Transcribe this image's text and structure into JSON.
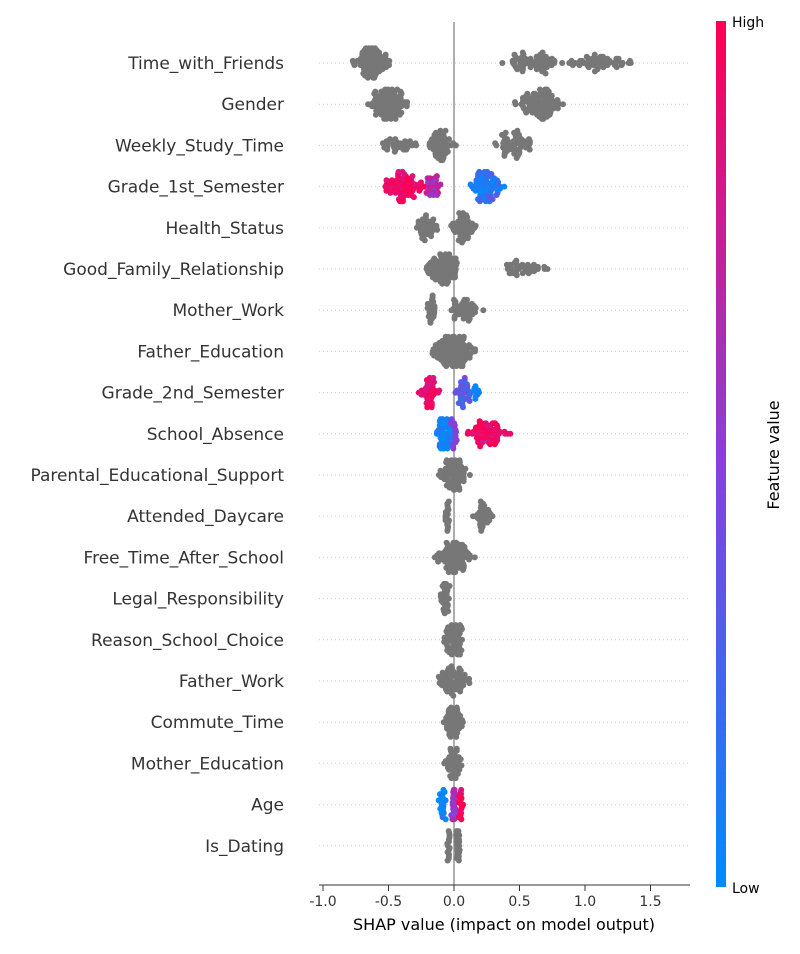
{
  "chart_data": {
    "type": "scatter",
    "subtype": "shap-beeswarm",
    "xlabel": "SHAP value (impact on model output)",
    "xlim": [
      -1.05,
      1.8
    ],
    "xticks": [
      "-1.0",
      "-0.5",
      "0.0",
      "0.5",
      "1.0",
      "1.5"
    ],
    "xtick_values": [
      -1.0,
      -0.5,
      0.0,
      0.5,
      1.0,
      1.5
    ],
    "grid": "dotted row lines",
    "colorbar": {
      "label": "Feature value",
      "high": "High",
      "low": "Low",
      "placement": "right"
    },
    "colors": {
      "low": "#008bfb",
      "high": "#ff0052",
      "no_value": "#777777",
      "axis": "#333333",
      "zero_line": "#999999"
    },
    "features": [
      {
        "name": "Time_with_Friends",
        "colored": false,
        "clusters": [
          {
            "center": -0.63,
            "spread": 0.1,
            "n": 110
          },
          {
            "center": 0.6,
            "spread": 0.17,
            "n": 70
          },
          {
            "center": 1.1,
            "spread": 0.22,
            "n": 60
          }
        ]
      },
      {
        "name": "Gender",
        "colored": false,
        "clusters": [
          {
            "center": -0.5,
            "spread": 0.11,
            "n": 120
          },
          {
            "center": 0.65,
            "spread": 0.14,
            "n": 110
          }
        ]
      },
      {
        "name": "Weekly_Study_Time",
        "colored": false,
        "clusters": [
          {
            "center": -0.1,
            "spread": 0.08,
            "n": 70
          },
          {
            "center": -0.45,
            "spread": 0.12,
            "n": 35
          },
          {
            "center": 0.45,
            "spread": 0.13,
            "n": 60
          }
        ]
      },
      {
        "name": "Grade_1st_Semester",
        "colored": true,
        "clusters": [
          {
            "center": -0.38,
            "spread": 0.12,
            "n": 90,
            "color": 0.95
          },
          {
            "center": -0.17,
            "spread": 0.06,
            "n": 30,
            "color": 0.65
          },
          {
            "center": 0.25,
            "spread": 0.1,
            "n": 80,
            "color": 0.1
          },
          {
            "center": 0.25,
            "spread": 0.05,
            "n": 25,
            "color": 0.35
          }
        ]
      },
      {
        "name": "Health_Status",
        "colored": false,
        "clusters": [
          {
            "center": -0.21,
            "spread": 0.07,
            "n": 40
          },
          {
            "center": 0.08,
            "spread": 0.08,
            "n": 60
          }
        ]
      },
      {
        "name": "Good_Family_Relationship",
        "colored": false,
        "clusters": [
          {
            "center": -0.08,
            "spread": 0.1,
            "n": 100
          },
          {
            "center": 0.5,
            "spread": 0.15,
            "n": 40
          }
        ]
      },
      {
        "name": "Mother_Work",
        "colored": false,
        "clusters": [
          {
            "center": -0.17,
            "spread": 0.03,
            "n": 25
          },
          {
            "center": 0.08,
            "spread": 0.1,
            "n": 50
          }
        ]
      },
      {
        "name": "Father_Education",
        "colored": false,
        "clusters": [
          {
            "center": 0.0,
            "spread": 0.14,
            "n": 160
          }
        ]
      },
      {
        "name": "Grade_2nd_Semester",
        "colored": true,
        "clusters": [
          {
            "center": -0.19,
            "spread": 0.06,
            "n": 45,
            "color": 0.9
          },
          {
            "center": 0.07,
            "spread": 0.04,
            "n": 40,
            "color": 0.3
          },
          {
            "center": 0.17,
            "spread": 0.03,
            "n": 10,
            "color": 0.05
          }
        ]
      },
      {
        "name": "School_Absence",
        "colored": true,
        "clusters": [
          {
            "center": -0.07,
            "spread": 0.05,
            "n": 90,
            "color": 0.05
          },
          {
            "center": 0.0,
            "spread": 0.02,
            "n": 20,
            "color": 0.5
          },
          {
            "center": 0.25,
            "spread": 0.14,
            "n": 70,
            "color": 0.9
          }
        ]
      },
      {
        "name": "Parental_Educational_Support",
        "colored": false,
        "clusters": [
          {
            "center": 0.0,
            "spread": 0.09,
            "n": 90
          }
        ]
      },
      {
        "name": "Attended_Daycare",
        "colored": false,
        "clusters": [
          {
            "center": -0.05,
            "spread": 0.015,
            "n": 40
          },
          {
            "center": 0.22,
            "spread": 0.06,
            "n": 40
          }
        ]
      },
      {
        "name": "Free_Time_After_School",
        "colored": false,
        "clusters": [
          {
            "center": 0.0,
            "spread": 0.12,
            "n": 110
          }
        ]
      },
      {
        "name": "Legal_Responsibility",
        "colored": false,
        "clusters": [
          {
            "center": -0.07,
            "spread": 0.03,
            "n": 50
          }
        ]
      },
      {
        "name": "Reason_School_Choice",
        "colored": false,
        "clusters": [
          {
            "center": 0.0,
            "spread": 0.06,
            "n": 90
          }
        ]
      },
      {
        "name": "Father_Work",
        "colored": false,
        "clusters": [
          {
            "center": 0.0,
            "spread": 0.1,
            "n": 80
          }
        ]
      },
      {
        "name": "Commute_Time",
        "colored": false,
        "clusters": [
          {
            "center": 0.0,
            "spread": 0.06,
            "n": 80
          }
        ]
      },
      {
        "name": "Mother_Education",
        "colored": false,
        "clusters": [
          {
            "center": 0.0,
            "spread": 0.05,
            "n": 80
          }
        ]
      },
      {
        "name": "Age",
        "colored": true,
        "clusters": [
          {
            "center": -0.09,
            "spread": 0.02,
            "n": 25,
            "color": 0.05
          },
          {
            "center": 0.0,
            "spread": 0.015,
            "n": 45,
            "color": 0.55
          },
          {
            "center": 0.05,
            "spread": 0.015,
            "n": 20,
            "color": 0.95
          }
        ]
      },
      {
        "name": "Is_Dating",
        "colored": false,
        "clusters": [
          {
            "center": -0.04,
            "spread": 0.01,
            "n": 35
          },
          {
            "center": 0.03,
            "spread": 0.01,
            "n": 35
          }
        ]
      }
    ]
  }
}
